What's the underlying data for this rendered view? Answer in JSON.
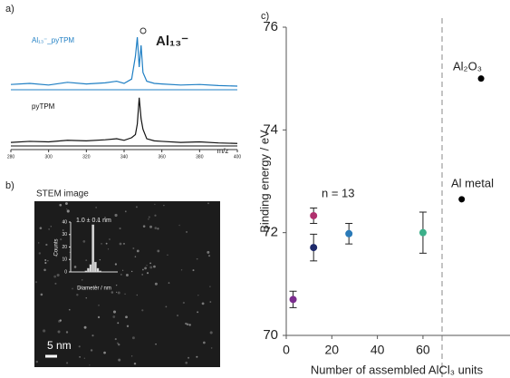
{
  "chart_data": [
    {
      "type": "line",
      "panel_label": "a)",
      "x_label": "m/z",
      "annotation": "Al₁₃⁻",
      "x": [
        280,
        290,
        300,
        310,
        320,
        330,
        336,
        340,
        344,
        346,
        347,
        348,
        349,
        350,
        352,
        356,
        360,
        370,
        380,
        390,
        400
      ],
      "series": [
        {
          "name": "Al₁₃⁻_pyTPM",
          "color": "#1f7fc4",
          "values": [
            8,
            10,
            7,
            12,
            9,
            11,
            14,
            10,
            18,
            60,
            95,
            40,
            80,
            30,
            14,
            10,
            9,
            7,
            8,
            6,
            5
          ]
        },
        {
          "name": "pyTPM",
          "color": "#111111",
          "values": [
            5,
            7,
            6,
            9,
            8,
            10,
            12,
            9,
            14,
            20,
            40,
            90,
            50,
            30,
            12,
            8,
            7,
            5,
            6,
            4,
            3
          ]
        }
      ],
      "xlim": [
        280,
        400
      ],
      "xticks": [
        280,
        300,
        320,
        340,
        360,
        380,
        400
      ]
    },
    {
      "type": "histogram",
      "panel_label": "b)",
      "title": "STEM image",
      "annotation": "1.0 ± 0.1 nm",
      "scale_bar": "5 nm",
      "x_label": "Diameter / nm",
      "y_label": "Counts",
      "bins": [
        0.8,
        0.85,
        0.9,
        0.95,
        1.0,
        1.05,
        1.1,
        1.15
      ],
      "counts": [
        1,
        3,
        6,
        38,
        8,
        3,
        1
      ],
      "xlim": [
        0.5,
        1.5
      ],
      "ylim": [
        0,
        40
      ],
      "yticks": [
        0,
        10,
        20,
        30,
        40
      ],
      "color": "#d8d8d8"
    },
    {
      "type": "scatter",
      "panel_label": "c)",
      "x_label": "Number of assembled AlCl₃ units",
      "y_label": "Binding energy / eV",
      "annotation": "n = 13",
      "x": [
        3,
        12,
        12,
        27.5,
        60
      ],
      "values": [
        70.7,
        71.71,
        72.33,
        71.98,
        72.0
      ],
      "errors": [
        0.16,
        0.26,
        0.15,
        0.2,
        0.4
      ],
      "colors": [
        "#7b2d8e",
        "#1f2a6b",
        "#b0306e",
        "#2a7ab8",
        "#3cb08a"
      ],
      "references": [
        {
          "label": "Al₂O₃",
          "x": 85.5,
          "value": 75.0
        },
        {
          "label": "Al metal",
          "x": 77,
          "value": 72.65
        }
      ],
      "xlim": [
        0,
        97
      ],
      "ylim": [
        70,
        76
      ],
      "xticks": [
        0,
        20,
        40,
        60
      ],
      "yticks": [
        70,
        72,
        74,
        76
      ]
    }
  ]
}
